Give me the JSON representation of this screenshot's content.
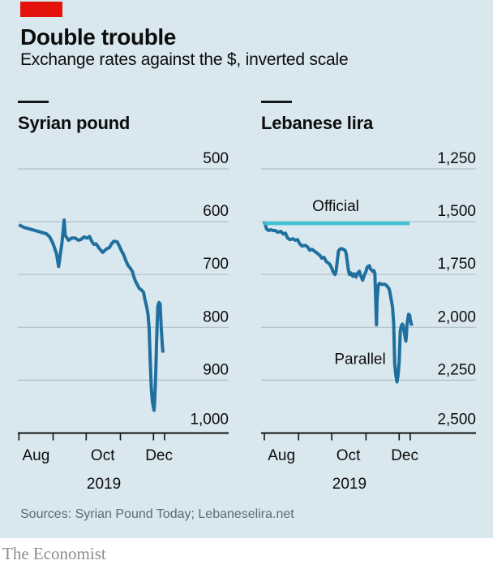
{
  "header": {
    "title": "Double trouble",
    "subtitle": "Exchange rates against the $, inverted scale"
  },
  "colors": {
    "background": "#d9e7ee",
    "accent_red": "#e3120b",
    "blue": "#1f6f9f",
    "cyan": "#3fc3d4",
    "grid": "#b0c0c9",
    "axis": "#101414",
    "text": "#0d0d0d",
    "sources_gray": "#5c6b73",
    "brand_gray": "#8a8e90"
  },
  "footer": {
    "sources": "Sources: Syrian Pound Today; Lebaneselira.net",
    "brand": "The Economist"
  },
  "chart_data": [
    {
      "type": "line",
      "title": "Syrian pound",
      "x_unit": "days since 1 Aug 2019",
      "ylim": [
        500,
        1000
      ],
      "inverted_scale": true,
      "grid": true,
      "y_ticks": [
        {
          "label": "500",
          "value": 500
        },
        {
          "label": "600",
          "value": 600
        },
        {
          "label": "700",
          "value": 700
        },
        {
          "label": "800",
          "value": 800
        },
        {
          "label": "900",
          "value": 900
        },
        {
          "label": "1,000",
          "value": 1000
        }
      ],
      "x_tick_days": [
        0,
        31,
        61,
        92,
        122,
        132
      ],
      "month_labels": [
        {
          "label": "Aug",
          "day": 15.5
        },
        {
          "label": "Oct",
          "day": 76
        },
        {
          "label": "Dec",
          "day": 127
        }
      ],
      "year_label": {
        "label": "2019",
        "day": 77
      },
      "annotations": [],
      "series": [
        {
          "name": "parallel",
          "color": "blue",
          "width": 4,
          "points": [
            [
              0,
              606
            ],
            [
              5,
              611
            ],
            [
              12,
              615
            ],
            [
              20,
              620
            ],
            [
              25,
              623
            ],
            [
              28,
              629
            ],
            [
              31,
              642
            ],
            [
              34,
              660
            ],
            [
              36,
              685
            ],
            [
              39,
              640
            ],
            [
              41,
              597
            ],
            [
              42,
              626
            ],
            [
              45,
              635
            ],
            [
              48,
              631
            ],
            [
              51,
              631
            ],
            [
              54,
              635
            ],
            [
              56,
              634
            ],
            [
              59,
              629
            ],
            [
              62,
              631
            ],
            [
              64,
              628
            ],
            [
              66,
              637
            ],
            [
              68,
              643
            ],
            [
              70,
              642
            ],
            [
              73,
              651
            ],
            [
              76,
              658
            ],
            [
              78,
              654
            ],
            [
              80,
              651
            ],
            [
              82,
              649
            ],
            [
              84,
              642
            ],
            [
              86,
              637
            ],
            [
              89,
              638
            ],
            [
              91,
              646
            ],
            [
              93,
              655
            ],
            [
              95,
              663
            ],
            [
              97,
              674
            ],
            [
              99,
              683
            ],
            [
              101,
              688
            ],
            [
              103,
              695
            ],
            [
              104,
              703
            ],
            [
              106,
              714
            ],
            [
              108,
              722
            ],
            [
              109,
              726
            ],
            [
              111,
              729
            ],
            [
              113,
              734
            ],
            [
              114,
              745
            ],
            [
              115,
              754
            ],
            [
              116,
              763
            ],
            [
              117,
              775
            ],
            [
              118,
              800
            ],
            [
              119,
              860
            ],
            [
              120,
              915
            ],
            [
              121,
              940
            ],
            [
              122,
              952
            ],
            [
              122.5,
              957
            ],
            [
              123,
              940
            ],
            [
              124,
              890
            ],
            [
              124.7,
              834
            ],
            [
              125.4,
              790
            ],
            [
              126,
              760
            ],
            [
              127,
              753
            ],
            [
              128,
              756
            ],
            [
              129,
              800
            ],
            [
              130,
              834
            ],
            [
              130.6,
              848
            ]
          ]
        }
      ]
    },
    {
      "type": "line",
      "title": "Lebanese lira",
      "x_unit": "days since 1 Aug 2019",
      "ylim": [
        1250,
        2500
      ],
      "inverted_scale": true,
      "grid": true,
      "y_ticks": [
        {
          "label": "1,250",
          "value": 1250
        },
        {
          "label": "1,500",
          "value": 1500
        },
        {
          "label": "1,750",
          "value": 1750
        },
        {
          "label": "2,000",
          "value": 2000
        },
        {
          "label": "2,250",
          "value": 2250
        },
        {
          "label": "2,500",
          "value": 2500
        }
      ],
      "x_tick_days": [
        0,
        31,
        61,
        92,
        122,
        132
      ],
      "month_labels": [
        {
          "label": "Aug",
          "day": 15.5
        },
        {
          "label": "Oct",
          "day": 76
        },
        {
          "label": "Dec",
          "day": 127
        }
      ],
      "year_label": {
        "label": "2019",
        "day": 77
      },
      "annotations": [
        {
          "text": "Official",
          "day": 64.6,
          "value": 1450
        },
        {
          "text": "Parallel",
          "day": 86.6,
          "value": 2173
        }
      ],
      "series": [
        {
          "name": "parallel",
          "color": "blue",
          "width": 4,
          "points": [
            [
              0,
              1500
            ],
            [
              1,
              1515
            ],
            [
              2,
              1535
            ],
            [
              4,
              1542
            ],
            [
              6,
              1538
            ],
            [
              8,
              1542
            ],
            [
              10,
              1542
            ],
            [
              12,
              1550
            ],
            [
              15,
              1546
            ],
            [
              17,
              1558
            ],
            [
              19,
              1554
            ],
            [
              21,
              1577
            ],
            [
              23,
              1585
            ],
            [
              26,
              1581
            ],
            [
              28,
              1588
            ],
            [
              30,
              1585
            ],
            [
              32,
              1604
            ],
            [
              34,
              1615
            ],
            [
              37,
              1612
            ],
            [
              39,
              1619
            ],
            [
              41,
              1635
            ],
            [
              43,
              1631
            ],
            [
              45,
              1638
            ],
            [
              48,
              1650
            ],
            [
              50,
              1658
            ],
            [
              52,
              1673
            ],
            [
              54,
              1669
            ],
            [
              56,
              1688
            ],
            [
              59,
              1700
            ],
            [
              61,
              1719
            ],
            [
              62,
              1735
            ],
            [
              64,
              1750
            ],
            [
              65,
              1731
            ],
            [
              67,
              1642
            ],
            [
              68,
              1631
            ],
            [
              70,
              1627
            ],
            [
              73,
              1635
            ],
            [
              74,
              1650
            ],
            [
              76,
              1727
            ],
            [
              77,
              1750
            ],
            [
              78,
              1742
            ],
            [
              80,
              1758
            ],
            [
              81,
              1746
            ],
            [
              83,
              1762
            ],
            [
              84,
              1746
            ],
            [
              86,
              1735
            ],
            [
              87,
              1754
            ],
            [
              89,
              1777
            ],
            [
              90,
              1758
            ],
            [
              92,
              1735
            ],
            [
              93,
              1715
            ],
            [
              95,
              1708
            ],
            [
              96,
              1723
            ],
            [
              98,
              1735
            ],
            [
              99,
              1731
            ],
            [
              100,
              1742
            ],
            [
              101,
              1912
            ],
            [
              101.5,
              1988
            ],
            [
              102,
              1873
            ],
            [
              103,
              1804
            ],
            [
              104,
              1792
            ],
            [
              106,
              1796
            ],
            [
              109,
              1796
            ],
            [
              111,
              1804
            ],
            [
              113,
              1819
            ],
            [
              114,
              1846
            ],
            [
              116,
              1904
            ],
            [
              117,
              1981
            ],
            [
              117.5,
              2085
            ],
            [
              118,
              2173
            ],
            [
              119,
              2227
            ],
            [
              120,
              2258
            ],
            [
              121,
              2227
            ],
            [
              122,
              2162
            ],
            [
              122.5,
              2085
            ],
            [
              123,
              2019
            ],
            [
              124,
              1992
            ],
            [
              125,
              1985
            ],
            [
              125.5,
              1992
            ],
            [
              127,
              2035
            ],
            [
              128,
              2065
            ],
            [
              128.5,
              2042
            ],
            [
              129,
              1992
            ],
            [
              130,
              1954
            ],
            [
              130.5,
              1938
            ],
            [
              131.5,
              1942
            ],
            [
              132,
              1962
            ],
            [
              133,
              1985
            ],
            [
              133.5,
              1992
            ]
          ]
        },
        {
          "name": "official",
          "color": "cyan",
          "width": 4.5,
          "points": [
            [
              0,
              1507.5
            ],
            [
              131.5,
              1507.5
            ]
          ]
        }
      ]
    }
  ]
}
